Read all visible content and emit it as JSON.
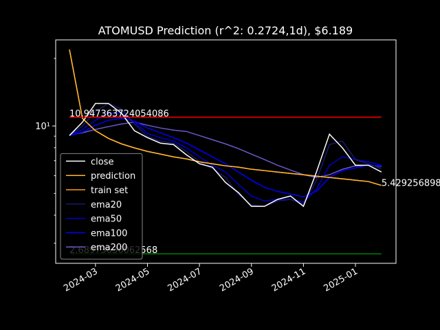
{
  "chart_data": {
    "type": "line",
    "title": "ATOMUSD Prediction (r^2: 0.2724,1d), $6.189",
    "log_y": true,
    "x": [
      1.0,
      1.5,
      2.0,
      2.5,
      3.0,
      3.5,
      4.0,
      4.5,
      5.0,
      5.5,
      6.0,
      6.5,
      7.0,
      7.5,
      8.0,
      8.5,
      9.0,
      9.5,
      10.0,
      10.5,
      11.0,
      11.5,
      12.0,
      12.5,
      13.0
    ],
    "xlim": [
      0.47,
      13.56
    ],
    "xticks": [
      {
        "value": 2,
        "label": "2024-03"
      },
      {
        "value": 4,
        "label": "2024-05"
      },
      {
        "value": 6,
        "label": "2024-07"
      },
      {
        "value": 8,
        "label": "2024-09"
      },
      {
        "value": 10,
        "label": "2024-11"
      },
      {
        "value": 12,
        "label": "2025-01"
      }
    ],
    "ylim": [
      2.44,
      24.2
    ],
    "yticks": [
      {
        "value": 10,
        "label": "10¹"
      }
    ],
    "yminorticks": [
      3,
      4,
      5,
      6,
      7,
      8,
      9,
      20
    ],
    "series": [
      {
        "name": "close",
        "color": "#ffffff",
        "values": [
          9.06,
          10.4,
          12.6,
          12.6,
          11.4,
          9.52,
          8.87,
          8.38,
          8.26,
          7.43,
          6.78,
          6.55,
          5.6,
          5.04,
          4.38,
          4.38,
          4.7,
          4.87,
          4.38,
          6.23,
          9.19,
          7.98,
          6.68,
          6.68,
          6.23
        ]
      },
      {
        "name": "prediction",
        "color": "#ffb62e",
        "values": [
          21.9,
          10.8,
          9.52,
          8.8,
          8.32,
          7.98,
          7.7,
          7.49,
          7.28,
          7.13,
          6.92,
          6.78,
          6.64,
          6.55,
          6.41,
          6.32,
          6.23,
          6.14,
          6.06,
          5.97,
          5.89,
          5.81,
          5.73,
          5.65,
          5.43
        ]
      },
      {
        "name": "train set",
        "color": "#ff9a1a",
        "values": [
          21.9,
          10.8,
          9.52,
          8.8,
          8.32,
          7.98,
          7.7,
          7.49,
          7.28,
          7.13,
          6.92,
          6.78,
          6.64,
          6.55,
          6.41,
          6.32,
          6.23,
          6.14,
          6.06,
          5.97,
          5.89,
          5.81,
          5.73,
          5.65,
          5.43
        ]
      },
      {
        "name": "ema20",
        "color": "#191970",
        "values": [
          9.06,
          10.0,
          11.6,
          12.6,
          11.9,
          10.2,
          8.99,
          8.56,
          8.38,
          7.7,
          6.92,
          6.45,
          5.89,
          4.95,
          4.44,
          4.38,
          4.63,
          4.7,
          4.47,
          5.73,
          8.26,
          8.56,
          7.08,
          6.78,
          6.45
        ]
      },
      {
        "name": "ema50",
        "color": "#0000cd",
        "values": [
          9.06,
          9.65,
          10.6,
          11.4,
          11.4,
          10.4,
          9.25,
          8.87,
          8.56,
          7.98,
          7.28,
          6.68,
          6.23,
          5.49,
          4.87,
          4.63,
          4.7,
          4.7,
          4.57,
          5.22,
          6.68,
          7.28,
          7.08,
          6.92,
          6.68
        ]
      },
      {
        "name": "ema100",
        "color": "#0000ff",
        "values": [
          9.06,
          9.38,
          10.07,
          10.6,
          10.8,
          10.5,
          9.79,
          9.32,
          8.87,
          8.38,
          7.81,
          7.28,
          6.78,
          6.23,
          5.73,
          5.33,
          5.11,
          4.97,
          4.83,
          5.11,
          5.89,
          6.32,
          6.5,
          6.68,
          6.64
        ]
      },
      {
        "name": "ema200",
        "color": "#6a5acd",
        "values": [
          9.12,
          9.32,
          9.65,
          9.93,
          10.2,
          10.4,
          10.07,
          9.79,
          9.58,
          9.45,
          9.06,
          8.68,
          8.32,
          7.92,
          7.49,
          7.08,
          6.68,
          6.36,
          6.06,
          5.89,
          6.06,
          6.41,
          6.64,
          6.68,
          6.6
        ]
      }
    ],
    "hlines": [
      {
        "value": 10.947363724054085,
        "label": "10.947363724054086",
        "color": "#ff0000"
      },
      {
        "value": 2.68973636062568,
        "label": "2.68973636062568",
        "color": "#008000"
      }
    ],
    "annotations": [
      {
        "text": "5.429256898",
        "value": 5.429256898
      }
    ],
    "legend": "lower left"
  }
}
